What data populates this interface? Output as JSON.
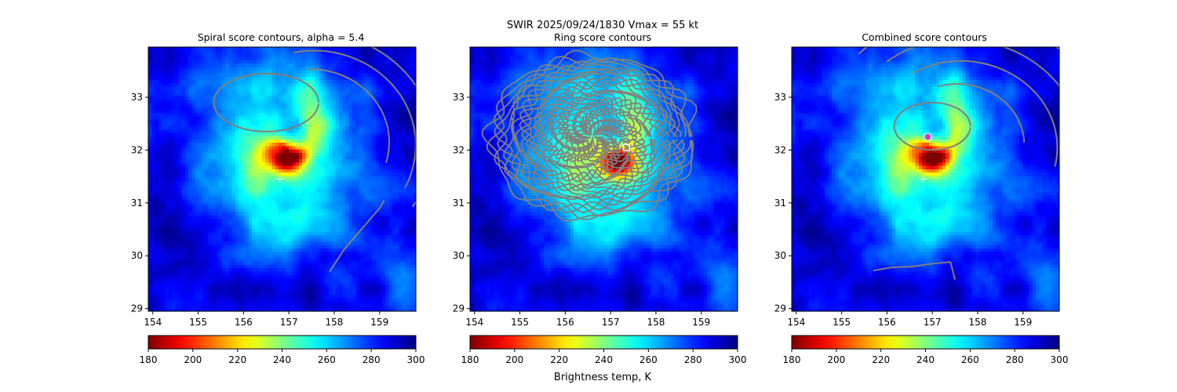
{
  "figure": {
    "suptitle_line": "SWIR  2025/09/24/1830    Vmax = 55 kt",
    "colorbar_label": "Brightness temp, K"
  },
  "chart_data": [
    {
      "type": "heatmap",
      "title": "Spiral score contours, alpha =  5.4",
      "xlim": [
        153.9,
        159.8
      ],
      "ylim": [
        28.95,
        33.95
      ],
      "xticks": [
        154,
        155,
        156,
        157,
        158,
        159
      ],
      "yticks": [
        29,
        30,
        31,
        32,
        33
      ],
      "colorbar": {
        "ticks": [
          180,
          200,
          220,
          240,
          260,
          280,
          300
        ],
        "range": [
          180,
          300
        ],
        "cmap": "jet_r"
      },
      "center": [
        156.95,
        32.0
      ],
      "hot_core": [
        156.95,
        31.85
      ],
      "markers": [
        {
          "kind": "plus",
          "x": 156.8,
          "y": 31.45,
          "color": "#ffffff"
        }
      ],
      "contours": "spiral"
    },
    {
      "type": "heatmap",
      "title": "Ring score contours",
      "xlim": [
        153.9,
        159.8
      ],
      "ylim": [
        28.95,
        33.95
      ],
      "xticks": [
        154,
        155,
        156,
        157,
        158,
        159
      ],
      "yticks": [
        29,
        30,
        31,
        32,
        33
      ],
      "colorbar": {
        "ticks": [
          180,
          200,
          220,
          240,
          260,
          280,
          300
        ],
        "range": [
          180,
          300
        ],
        "cmap": "jet_r"
      },
      "center": [
        156.9,
        32.0
      ],
      "hot_core": [
        157.2,
        31.75
      ],
      "markers": [
        {
          "kind": "square",
          "x": 157.35,
          "y": 32.05,
          "color": "#ffffff"
        }
      ],
      "contours": "ring",
      "ring_center": [
        156.6,
        32.25
      ]
    },
    {
      "type": "heatmap",
      "title": "Combined score contours",
      "xlim": [
        153.9,
        159.8
      ],
      "ylim": [
        28.95,
        33.95
      ],
      "xticks": [
        154,
        155,
        156,
        157,
        158,
        159
      ],
      "yticks": [
        29,
        30,
        31,
        32,
        33
      ],
      "colorbar": {
        "ticks": [
          180,
          200,
          220,
          240,
          260,
          280,
          300
        ],
        "range": [
          180,
          300
        ],
        "cmap": "jet_r"
      },
      "center": [
        156.95,
        32.0
      ],
      "hot_core": [
        157.0,
        31.85
      ],
      "markers": [
        {
          "kind": "plus",
          "x": 156.8,
          "y": 31.45,
          "color": "#ffffff"
        },
        {
          "kind": "circle",
          "x": 156.9,
          "y": 32.25,
          "color": "#d040d0"
        }
      ],
      "contours": "combined"
    }
  ]
}
